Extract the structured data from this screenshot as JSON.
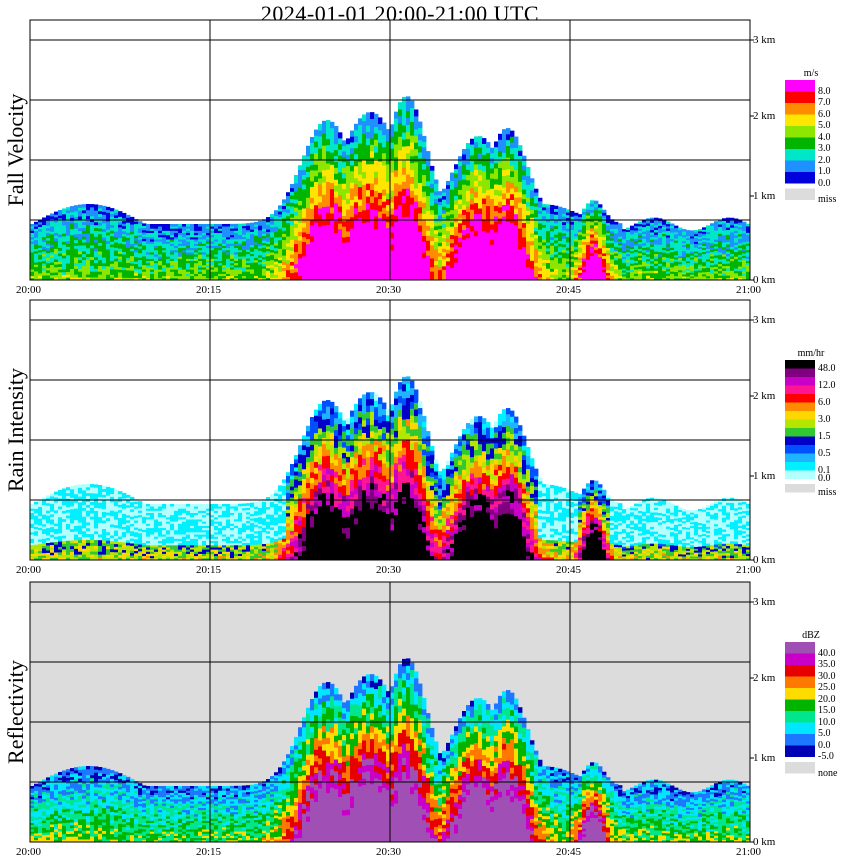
{
  "chart_data": {
    "title": "2024-01-01   20:00-21:00 UTC",
    "type": "heatmap",
    "time_axis": {
      "ticks": [
        "20:00",
        "20:15",
        "20:30",
        "20:45",
        "21:00"
      ]
    },
    "altitude_axis": {
      "ticks": [
        "0 km",
        "1 km",
        "2 km",
        "3 km"
      ],
      "range_km": [
        0,
        3.2
      ]
    },
    "grid": true,
    "panels": [
      {
        "ylabel": "Fall Velocity",
        "unit": "m/s",
        "background": "#ffffff",
        "legend": [
          {
            "label": "8.0",
            "color": "#ff00ff"
          },
          {
            "label": "7.0",
            "color": "#ff0000"
          },
          {
            "label": "6.0",
            "color": "#ff8c00"
          },
          {
            "label": "5.0",
            "color": "#ffe600"
          },
          {
            "label": "4.0",
            "color": "#8ce600"
          },
          {
            "label": "3.0",
            "color": "#00b400"
          },
          {
            "label": "2.0",
            "color": "#00e6c8"
          },
          {
            "label": "1.0",
            "color": "#1e90ff"
          },
          {
            "label": "0.0",
            "color": "#0000dc"
          },
          {
            "label": "miss",
            "color": "#dcdcdc"
          }
        ]
      },
      {
        "ylabel": "Rain Intensity",
        "unit": "mm/hr",
        "background": "#ffffff",
        "legend": [
          {
            "label": "48.0",
            "color": "#000000"
          },
          {
            "label": "",
            "color": "#800080"
          },
          {
            "label": "12.0",
            "color": "#c800c8"
          },
          {
            "label": "",
            "color": "#ff1493"
          },
          {
            "label": "6.0",
            "color": "#ff0000"
          },
          {
            "label": "",
            "color": "#ff8c00"
          },
          {
            "label": "3.0",
            "color": "#ffd700"
          },
          {
            "label": "",
            "color": "#b4e600"
          },
          {
            "label": "1.5",
            "color": "#32c832"
          },
          {
            "label": "",
            "color": "#0000c8"
          },
          {
            "label": "0.5",
            "color": "#0050ff"
          },
          {
            "label": "",
            "color": "#1eb4ff"
          },
          {
            "label": "0.1",
            "color": "#00f0ff"
          },
          {
            "label": "0.0",
            "color": "#b4ffff"
          },
          {
            "label": "miss",
            "color": "#dcdcdc"
          }
        ]
      },
      {
        "ylabel": "Reflectivity",
        "unit": "dBZ",
        "background": "#dcdcdc",
        "legend": [
          {
            "label": "40.0",
            "color": "#a050b4"
          },
          {
            "label": "35.0",
            "color": "#c800c8"
          },
          {
            "label": "30.0",
            "color": "#e60000"
          },
          {
            "label": "25.0",
            "color": "#ff7800"
          },
          {
            "label": "20.0",
            "color": "#ffdc00"
          },
          {
            "label": "15.0",
            "color": "#00b400"
          },
          {
            "label": "10.0",
            "color": "#00e68c"
          },
          {
            "label": "5.0",
            "color": "#00e6ff"
          },
          {
            "label": "0.0",
            "color": "#1e78ff"
          },
          {
            "label": "-5.0",
            "color": "#0000b4"
          },
          {
            "label": "none",
            "color": "#dcdcdc"
          }
        ]
      }
    ]
  }
}
